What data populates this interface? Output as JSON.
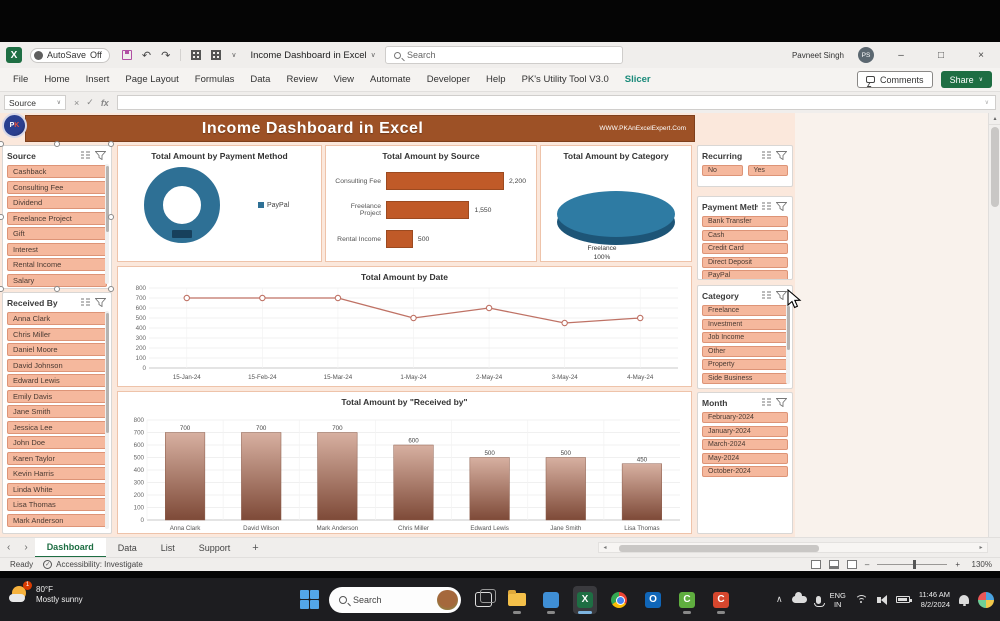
{
  "titlebar": {
    "autosave_label": "AutoSave",
    "autosave_state": "Off",
    "doc_title": "Income Dashboard in Excel",
    "search_placeholder": "Search",
    "user_name": "Pavneet Singh",
    "user_initials": "PS"
  },
  "ribbon": {
    "tabs": [
      "File",
      "Home",
      "Insert",
      "Page Layout",
      "Formulas",
      "Data",
      "Review",
      "View",
      "Automate",
      "Developer",
      "Help",
      "PK's Utility Tool V3.0",
      "Slicer"
    ],
    "active_tab": "Slicer",
    "comments_label": "Comments",
    "share_label": "Share"
  },
  "formula_bar": {
    "name_box_value": "Source"
  },
  "dashboard": {
    "title": "Income Dashboard in Excel",
    "website": "WWW.PKAnExcelExpert.Com",
    "accent_color": "#9d5126"
  },
  "slicers": {
    "source": {
      "title": "Source",
      "items": [
        "Cashback",
        "Consulting Fee",
        "Dividend",
        "Freelance Project",
        "Gift",
        "Interest",
        "Rental Income",
        "Salary"
      ]
    },
    "received_by": {
      "title": "Received By",
      "items": [
        "Anna Clark",
        "Chris Miller",
        "Daniel Moore",
        "David Johnson",
        "Edward Lewis",
        "Emily Davis",
        "Jane Smith",
        "Jessica Lee",
        "John Doe",
        "Karen Taylor",
        "Kevin Harris",
        "Linda White",
        "Lisa Thomas",
        "Mark Anderson"
      ]
    },
    "recurring": {
      "title": "Recurring",
      "items": [
        "No",
        "Yes"
      ]
    },
    "payment_method": {
      "title": "Payment Method",
      "items": [
        "Bank Transfer",
        "Cash",
        "Credit Card",
        "Direct Deposit",
        "PayPal"
      ]
    },
    "category": {
      "title": "Category",
      "items": [
        "Freelance",
        "Investment",
        "Job Income",
        "Other",
        "Property",
        "Side Business"
      ]
    },
    "month": {
      "title": "Month",
      "items": [
        "February-2024",
        "January-2024",
        "March-2024",
        "May-2024",
        "October-2024"
      ]
    }
  },
  "chart_data": [
    {
      "type": "donut",
      "title": "Total Amount by Payment Method",
      "categories": [
        "PayPal"
      ],
      "values": [
        100
      ],
      "legend": [
        "PayPal"
      ],
      "legend_position": "right",
      "color": "#2e7095"
    },
    {
      "type": "bar",
      "title": "Total Amount by Source",
      "categories": [
        "Consulting Fee",
        "Freelance Project",
        "Rental Income"
      ],
      "values": [
        2200,
        1550,
        500
      ],
      "data_labels": [
        "2,200",
        "1,550",
        "500"
      ],
      "xlim": [
        0,
        2600
      ],
      "color": "#c05a28"
    },
    {
      "type": "pie",
      "title": "Total Amount by Category",
      "categories": [
        "Freelance"
      ],
      "values": [
        100
      ],
      "data_labels": [
        "Freelance",
        "100%"
      ],
      "color": "#2e7ba3"
    },
    {
      "type": "line",
      "title": "Total Amount by Date",
      "x": [
        "15-Jan-24",
        "15-Feb-24",
        "15-Mar-24",
        "1-May-24",
        "2-May-24",
        "3-May-24",
        "4-May-24"
      ],
      "values": [
        700,
        700,
        700,
        500,
        600,
        450,
        500
      ],
      "ylim": [
        0,
        800
      ],
      "ytick_step": 100,
      "grid": true,
      "color": "#bf7265"
    },
    {
      "type": "column",
      "title": "Total Amount by \"Received by\"",
      "categories": [
        "Anna Clark",
        "David Wilson",
        "Mark Anderson",
        "Chris Miller",
        "Edward Lewis",
        "Jane Smith",
        "Lisa Thomas"
      ],
      "values": [
        700,
        700,
        700,
        600,
        500,
        500,
        450
      ],
      "ylim": [
        0,
        800
      ],
      "ytick_step": 100,
      "grid": true,
      "color_top": "#d7b0a1",
      "color_bottom": "#7e4a38"
    }
  ],
  "sheet_tabs": {
    "tabs": [
      "Dashboard",
      "Data",
      "List",
      "Support"
    ],
    "active": "Dashboard",
    "add_label": "+"
  },
  "status_bar": {
    "ready": "Ready",
    "accessibility": "Accessibility: Investigate",
    "zoom_level": "130%"
  },
  "taskbar": {
    "weather": {
      "temp": "80°F",
      "desc": "Mostly sunny",
      "badge": "1"
    },
    "search_label": "Search",
    "tray": {
      "lang_line1": "ENG",
      "lang_line2": "IN",
      "time": "11:46 AM",
      "date": "8/2/2024"
    }
  }
}
